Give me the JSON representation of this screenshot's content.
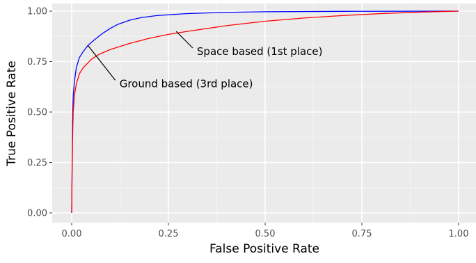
{
  "chart_data": {
    "type": "line",
    "title": "",
    "xlabel": "False Positive Rate",
    "ylabel": "True Positive Rate",
    "xlim": [
      -0.05,
      1.05
    ],
    "ylim": [
      -0.05,
      1.05
    ],
    "x_ticks": [
      "0.00",
      "0.25",
      "0.50",
      "0.75",
      "1.00"
    ],
    "y_ticks": [
      "0.00",
      "0.25",
      "0.50",
      "0.75",
      "1.00"
    ],
    "grid": true,
    "legend": "none",
    "series": [
      {
        "color": "#0000ff",
        "points": [
          [
            0,
            0
          ],
          [
            0.002,
            0.45
          ],
          [
            0.004,
            0.58
          ],
          [
            0.007,
            0.65
          ],
          [
            0.012,
            0.72
          ],
          [
            0.02,
            0.77
          ],
          [
            0.03,
            0.8
          ],
          [
            0.042,
            0.83
          ],
          [
            0.06,
            0.86
          ],
          [
            0.08,
            0.89
          ],
          [
            0.1,
            0.915
          ],
          [
            0.12,
            0.935
          ],
          [
            0.15,
            0.955
          ],
          [
            0.18,
            0.968
          ],
          [
            0.22,
            0.978
          ],
          [
            0.3,
            0.988
          ],
          [
            0.4,
            0.994
          ],
          [
            0.5,
            0.997
          ],
          [
            0.7,
            0.999
          ],
          [
            1.0,
            1.0
          ]
        ]
      },
      {
        "color": "#ff0000",
        "points": [
          [
            0,
            0
          ],
          [
            0.002,
            0.35
          ],
          [
            0.004,
            0.5
          ],
          [
            0.007,
            0.58
          ],
          [
            0.012,
            0.64
          ],
          [
            0.02,
            0.69
          ],
          [
            0.03,
            0.72
          ],
          [
            0.05,
            0.76
          ],
          [
            0.07,
            0.785
          ],
          [
            0.1,
            0.81
          ],
          [
            0.15,
            0.84
          ],
          [
            0.2,
            0.865
          ],
          [
            0.25,
            0.885
          ],
          [
            0.3,
            0.9
          ],
          [
            0.4,
            0.928
          ],
          [
            0.5,
            0.95
          ],
          [
            0.6,
            0.966
          ],
          [
            0.7,
            0.978
          ],
          [
            0.8,
            0.988
          ],
          [
            0.9,
            0.995
          ],
          [
            1.0,
            1.0
          ]
        ]
      }
    ],
    "annotations": [
      {
        "text": "Space based (1st place)",
        "at": [
          0.27,
          0.9
        ],
        "label": [
          0.32,
          0.8
        ]
      },
      {
        "text": "Ground based (3rd place)",
        "at": [
          0.042,
          0.83
        ],
        "label": [
          0.12,
          0.64
        ]
      }
    ]
  }
}
